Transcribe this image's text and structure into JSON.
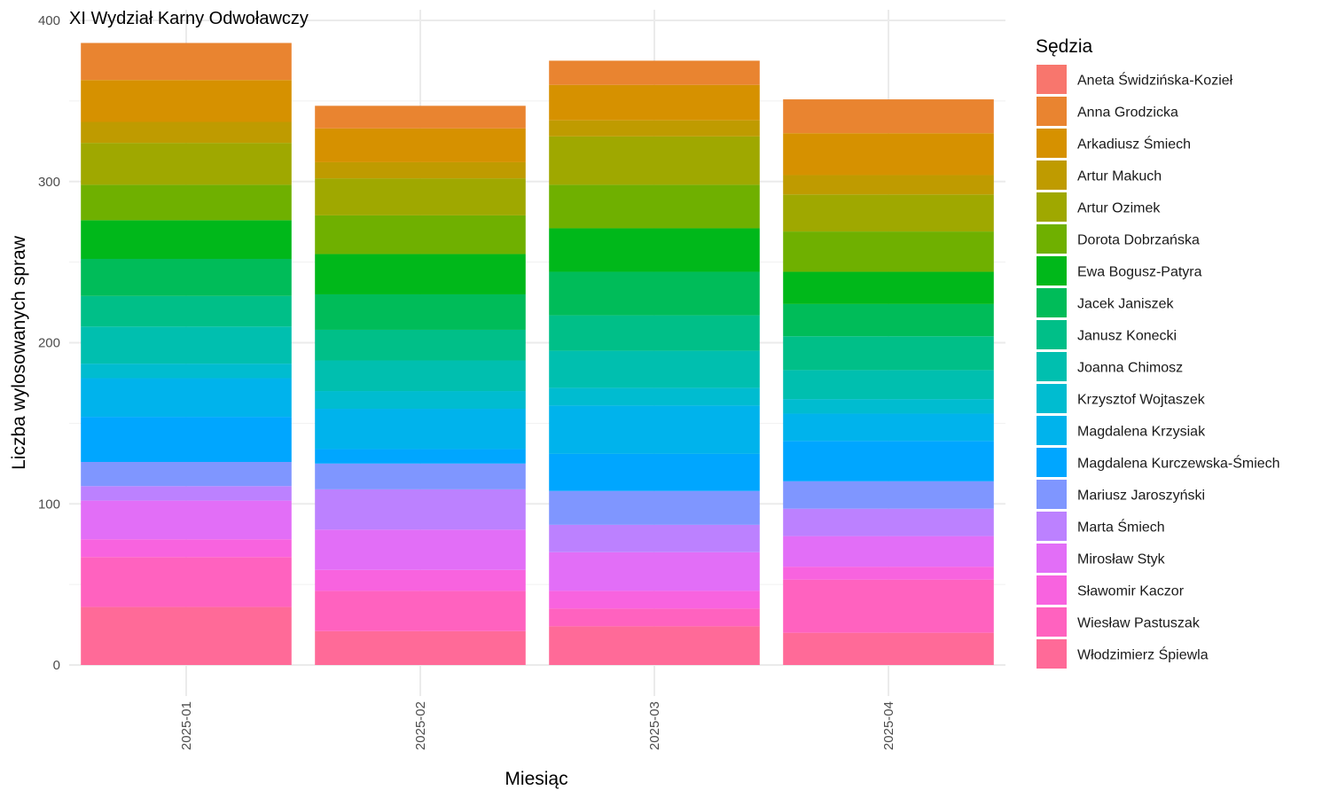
{
  "title": "XI Wydział Karny Odwoławczy",
  "chart_data": {
    "type": "bar",
    "stacked": true,
    "title": "XI Wydział Karny Odwoławczy",
    "xlabel": "Miesiąc",
    "ylabel": "Liczba wylosowanych spraw",
    "ylim": [
      0,
      400
    ],
    "yticks": [
      0,
      100,
      200,
      300,
      400
    ],
    "grid": true,
    "legend_title": "Sędzia",
    "legend_position": "right",
    "categories": [
      "2025-01",
      "2025-02",
      "2025-03",
      "2025-04"
    ],
    "series": [
      {
        "name": "Aneta Świdzińska-Kozieł",
        "color": "#F8766D",
        "values": [
          0,
          0,
          0,
          0
        ]
      },
      {
        "name": "Anna Grodzicka",
        "color": "#E98430",
        "values": [
          23,
          14,
          15,
          21
        ]
      },
      {
        "name": "Arkadiusz Śmiech",
        "color": "#D69100",
        "values": [
          26,
          21,
          22,
          26
        ]
      },
      {
        "name": "Artur Makuch",
        "color": "#BF9B00",
        "values": [
          13,
          10,
          10,
          12
        ]
      },
      {
        "name": "Artur Ozimek",
        "color": "#9FA800",
        "values": [
          26,
          23,
          30,
          23
        ]
      },
      {
        "name": "Dorota Dobrzańska",
        "color": "#6FB000",
        "values": [
          22,
          24,
          27,
          25
        ]
      },
      {
        "name": "Ewa Bogusz-Patyra",
        "color": "#00B81A",
        "values": [
          24,
          25,
          27,
          20
        ]
      },
      {
        "name": "Jacek Janiszek",
        "color": "#00BC59",
        "values": [
          23,
          22,
          27,
          20
        ]
      },
      {
        "name": "Janusz Konecki",
        "color": "#00BF88",
        "values": [
          19,
          19,
          22,
          21
        ]
      },
      {
        "name": "Joanna Chimosz",
        "color": "#00BFAF",
        "values": [
          23,
          19,
          23,
          18
        ]
      },
      {
        "name": "Krzysztof Wojtaszek",
        "color": "#00BCD0",
        "values": [
          9,
          11,
          11,
          9
        ]
      },
      {
        "name": "Magdalena Krzysiak",
        "color": "#00B3EC",
        "values": [
          24,
          25,
          30,
          17
        ]
      },
      {
        "name": "Magdalena Kurczewska-Śmiech",
        "color": "#00A6FF",
        "values": [
          28,
          9,
          23,
          25
        ]
      },
      {
        "name": "Mariusz Jaroszyński",
        "color": "#7F96FF",
        "values": [
          15,
          16,
          21,
          17
        ]
      },
      {
        "name": "Marta Śmiech",
        "color": "#BC81FF",
        "values": [
          9,
          25,
          17,
          17
        ]
      },
      {
        "name": "Mirosław Styk",
        "color": "#E26EF7",
        "values": [
          24,
          25,
          24,
          19
        ]
      },
      {
        "name": "Sławomir Kaczor",
        "color": "#F863DF",
        "values": [
          11,
          13,
          11,
          8
        ]
      },
      {
        "name": "Wiesław Pastuszak",
        "color": "#FF62BF",
        "values": [
          31,
          25,
          11,
          33
        ]
      },
      {
        "name": "Włodzimierz Śpiewla",
        "color": "#FF6A98",
        "values": [
          36,
          21,
          24,
          20
        ]
      }
    ]
  }
}
